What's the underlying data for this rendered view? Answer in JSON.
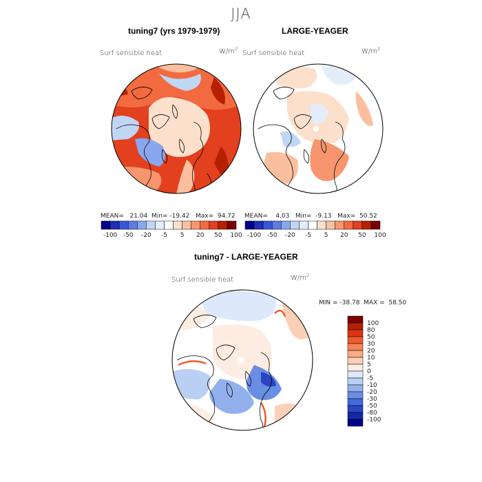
{
  "season": "JJA",
  "panels": [
    {
      "title": "tuning7 (yrs 1979-1979)",
      "variable": "Surf sensible heat",
      "units_base": "W/m",
      "units_exp": "2",
      "stats": {
        "mean_label": "MEAN=",
        "mean": "21.04",
        "min_label": "Min=",
        "min": "-19.42",
        "max_label": "Max=",
        "max": "94.72"
      },
      "colorbar_ticks": [
        "-100",
        "-50",
        "-20",
        "-5",
        "5",
        "20",
        "50",
        "100"
      ]
    },
    {
      "title": "LARGE-YEAGER",
      "variable": "Surf sensible heat",
      "units_base": "W/m",
      "units_exp": "2",
      "stats": {
        "mean_label": "MEAN=",
        "mean": "4.03",
        "min_label": "Min=",
        "min": "-9.13",
        "max_label": "Max=",
        "max": "50.52"
      },
      "colorbar_ticks": [
        "-100",
        "-50",
        "-20",
        "-5",
        "5",
        "20",
        "50",
        "100"
      ]
    }
  ],
  "diff_panel": {
    "title": "tuning7 - LARGE-YEAGER",
    "variable": "Surf sensible heat",
    "units_base": "W/m",
    "units_exp": "2",
    "minmax_text": "MIN = -38.78  MAX =  58.50",
    "colorbar_ticks": [
      "100",
      "80",
      "50",
      "30",
      "20",
      "10",
      "5",
      "0",
      "-5",
      "-10",
      "-20",
      "-30",
      "-50",
      "-80",
      "-100"
    ]
  },
  "colors": {
    "top_scale": [
      "#00008b",
      "#1e2fb8",
      "#3a57d8",
      "#5b7be6",
      "#8aa6ef",
      "#c0d6f5",
      "#e4eefb",
      "#ffffff",
      "#fde0cc",
      "#fbbf9f",
      "#f7966e",
      "#f26a3f",
      "#e2401e",
      "#b52000",
      "#7a0000"
    ],
    "diff_scale": [
      "#7a0000",
      "#b52000",
      "#dc3310",
      "#f05a2a",
      "#f58558",
      "#f9ab86",
      "#fcd0b6",
      "#fdece2",
      "#dde8fb",
      "#b9cff3",
      "#92b1ec",
      "#6a8ee3",
      "#456ad8",
      "#2a46c4",
      "#1428a6",
      "#00008b"
    ]
  }
}
